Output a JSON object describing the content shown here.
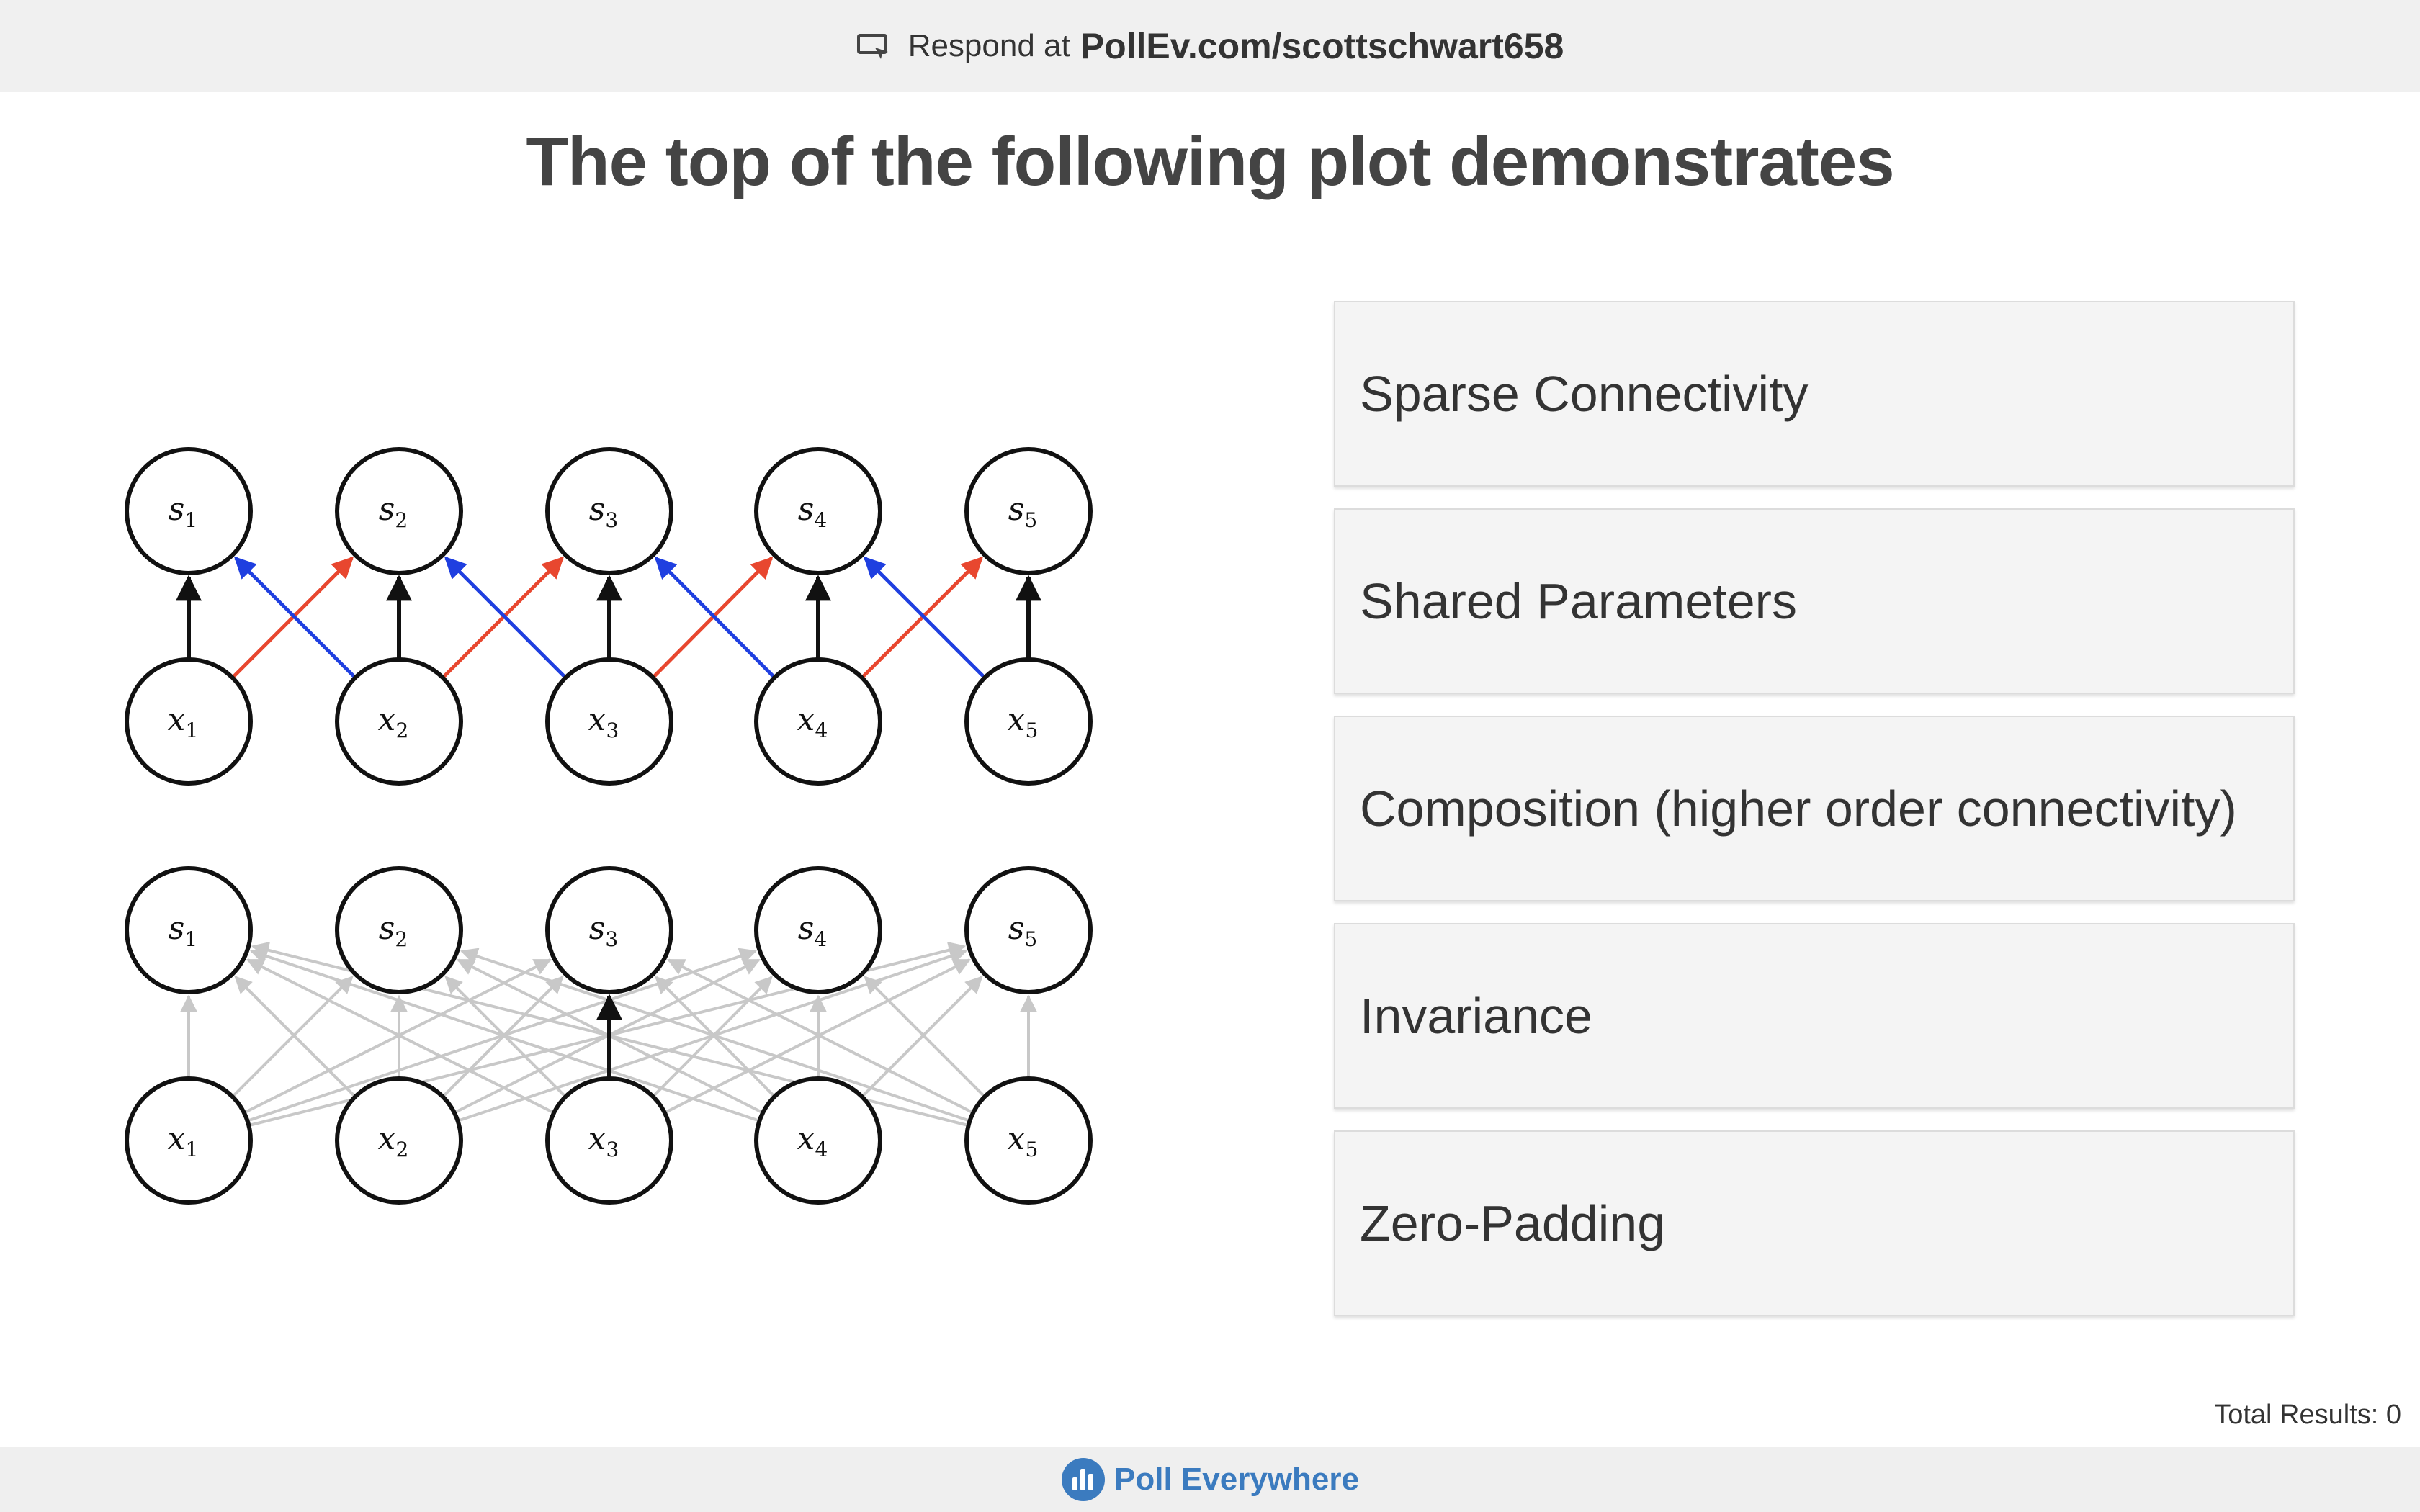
{
  "topbar": {
    "respond_label": "Respond at",
    "url": "PollEv.com/scottschwart658",
    "icon": "screen-respond-icon"
  },
  "question": {
    "title": "The top of the following plot demonstrates"
  },
  "figure": {
    "top_network": {
      "s_labels": [
        "1",
        "2",
        "3",
        "4",
        "5"
      ],
      "x_labels": [
        "1",
        "2",
        "3",
        "4",
        "5"
      ]
    },
    "bottom_network": {
      "s_labels": [
        "1",
        "2",
        "3",
        "4",
        "5"
      ],
      "x_labels": [
        "1",
        "2",
        "3",
        "4",
        "5"
      ]
    },
    "colors": {
      "node_stroke": "#111111",
      "vertical_edge": "#111111",
      "red_edge": "#e8472f",
      "blue_edge": "#1f3fe0",
      "faded_edge": "#c8c8c8"
    }
  },
  "options": [
    {
      "label": "Sparse Connectivity"
    },
    {
      "label": "Shared Parameters"
    },
    {
      "label": "Composition (higher order connectivity)"
    },
    {
      "label": "Invariance"
    },
    {
      "label": "Zero-Padding"
    }
  ],
  "footer": {
    "total_results": "Total Results: 0",
    "brand": "Poll Everywhere",
    "brand_color": "#3b7bbf"
  }
}
